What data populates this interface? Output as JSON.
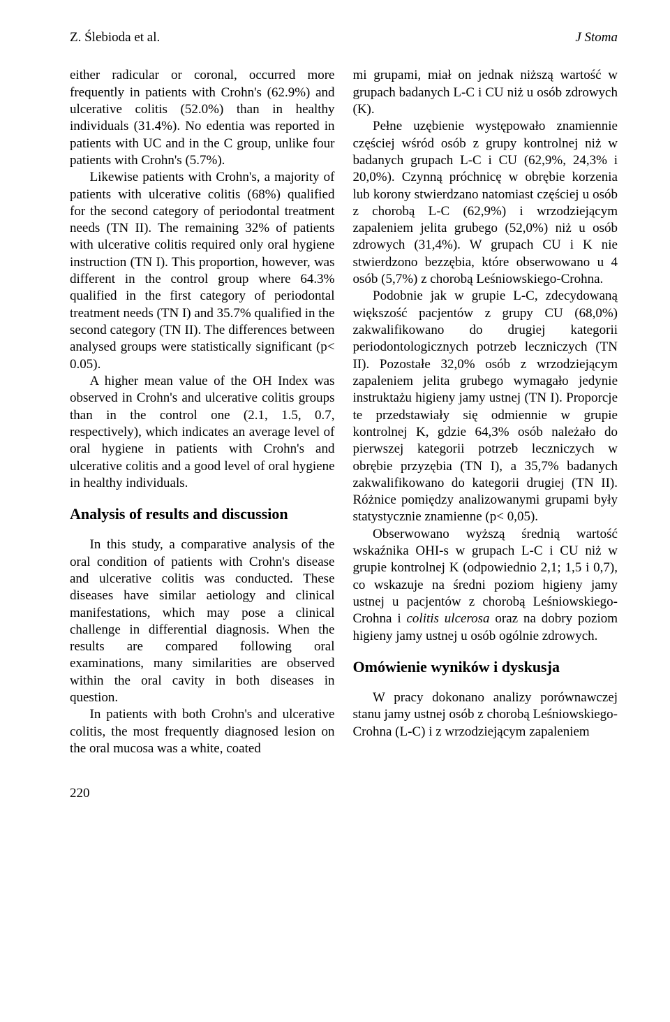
{
  "header": {
    "left": "Z. Ślebioda et al.",
    "right": "J Stoma"
  },
  "page_number": "220",
  "left_column": {
    "p1": "either radicular or coronal, occurred more frequently in patients with Crohn's (62.9%) and ulcerative colitis (52.0%) than in healthy individuals (31.4%). No edentia was reported in patients with UC and in the C group, unlike four patients with Crohn's (5.7%).",
    "p2": "Likewise patients with Crohn's, a majority of patients with ulcerative colitis (68%) qualified for the second category of periodontal treatment needs (TN II). The remaining 32% of patients with ulcerative colitis required only oral hygiene instruction (TN I). This proportion, however, was different in the control group where 64.3% qualified in the first category of periodontal treatment needs (TN I) and 35.7% qualified in the second category (TN II). The differences between analysed groups were statistically significant (p< 0.05).",
    "p3": "A higher mean value of the OH Index was observed in Crohn's and ulcerative colitis groups than in the control one (2.1, 1.5, 0.7, respectively), which indicates an average level of oral hygiene in patients with Crohn's and ulcerative colitis and a good level of oral hygiene in healthy individuals.",
    "h1": "Analysis of results and discussion",
    "p4": "In this study, a comparative analysis of the oral condition of patients with Crohn's disease and ulcerative colitis was conducted. These diseases have similar aetiology and clinical manifestations, which may pose a clinical challenge in differential diagnosis. When the results are compared following oral examinations, many similarities are observed within the oral cavity in both diseases in question.",
    "p5": "In patients with both Crohn's and ulcerative colitis, the most frequently diagnosed lesion on the oral mucosa was a white, coated"
  },
  "right_column": {
    "p1": "mi grupami, miał on jednak niższą wartość w grupach badanych L-C i CU niż u osób zdrowych (K).",
    "p2": "Pełne uzębienie występowało znamiennie częściej wśród osób z grupy kontrolnej niż w badanych grupach L-C i CU (62,9%, 24,3% i 20,0%). Czynną próchnicę w obrębie korzenia lub korony stwierdzano natomiast częściej u osób z chorobą L-C (62,9%) i wrzodziejącym zapaleniem jelita grubego (52,0%) niż u osób zdrowych (31,4%). W grupach CU i K nie stwierdzono bezzębia, które obserwowano u 4 osób (5,7%) z chorobą Leśniowskiego-Crohna.",
    "p3": "Podobnie jak w grupie L-C, zdecydowaną większość pacjentów z grupy CU (68,0%) zakwalifikowano do drugiej kategorii periodontologicznych potrzeb leczniczych (TN II). Pozostałe 32,0% osób z wrzodziejącym zapaleniem jelita grubego wymagało jedynie instruktażu higieny jamy ustnej (TN I). Proporcje te przedstawiały się odmiennie w grupie kontrolnej K, gdzie 64,3% osób należało do pierwszej kategorii potrzeb leczniczych w obrębie przyzębia (TN I), a 35,7% badanych zakwalifikowano do kategorii drugiej (TN II). Różnice pomiędzy analizowanymi grupami były statystycznie znamienne (p< 0,05).",
    "p4_a": "Obserwowano wyższą średnią wartość wskaźnika OHI-s w grupach L-C i CU niż w grupie kontrolnej K (odpowiednio 2,1; 1,5 i 0,7), co wskazuje na średni poziom higieny jamy ustnej u pacjentów z chorobą Leśniowskiego-Crohna i ",
    "p4_italic": "colitis ulcerosa",
    "p4_b": " oraz na dobry poziom higieny jamy ustnej u osób ogólnie zdrowych.",
    "h1": "Omówienie wyników i dyskusja",
    "p5": "W pracy dokonano analizy porównawczej stanu jamy ustnej osób z chorobą Leśniowskiego-Crohna (L-C) i z wrzodziejącym zapaleniem"
  }
}
